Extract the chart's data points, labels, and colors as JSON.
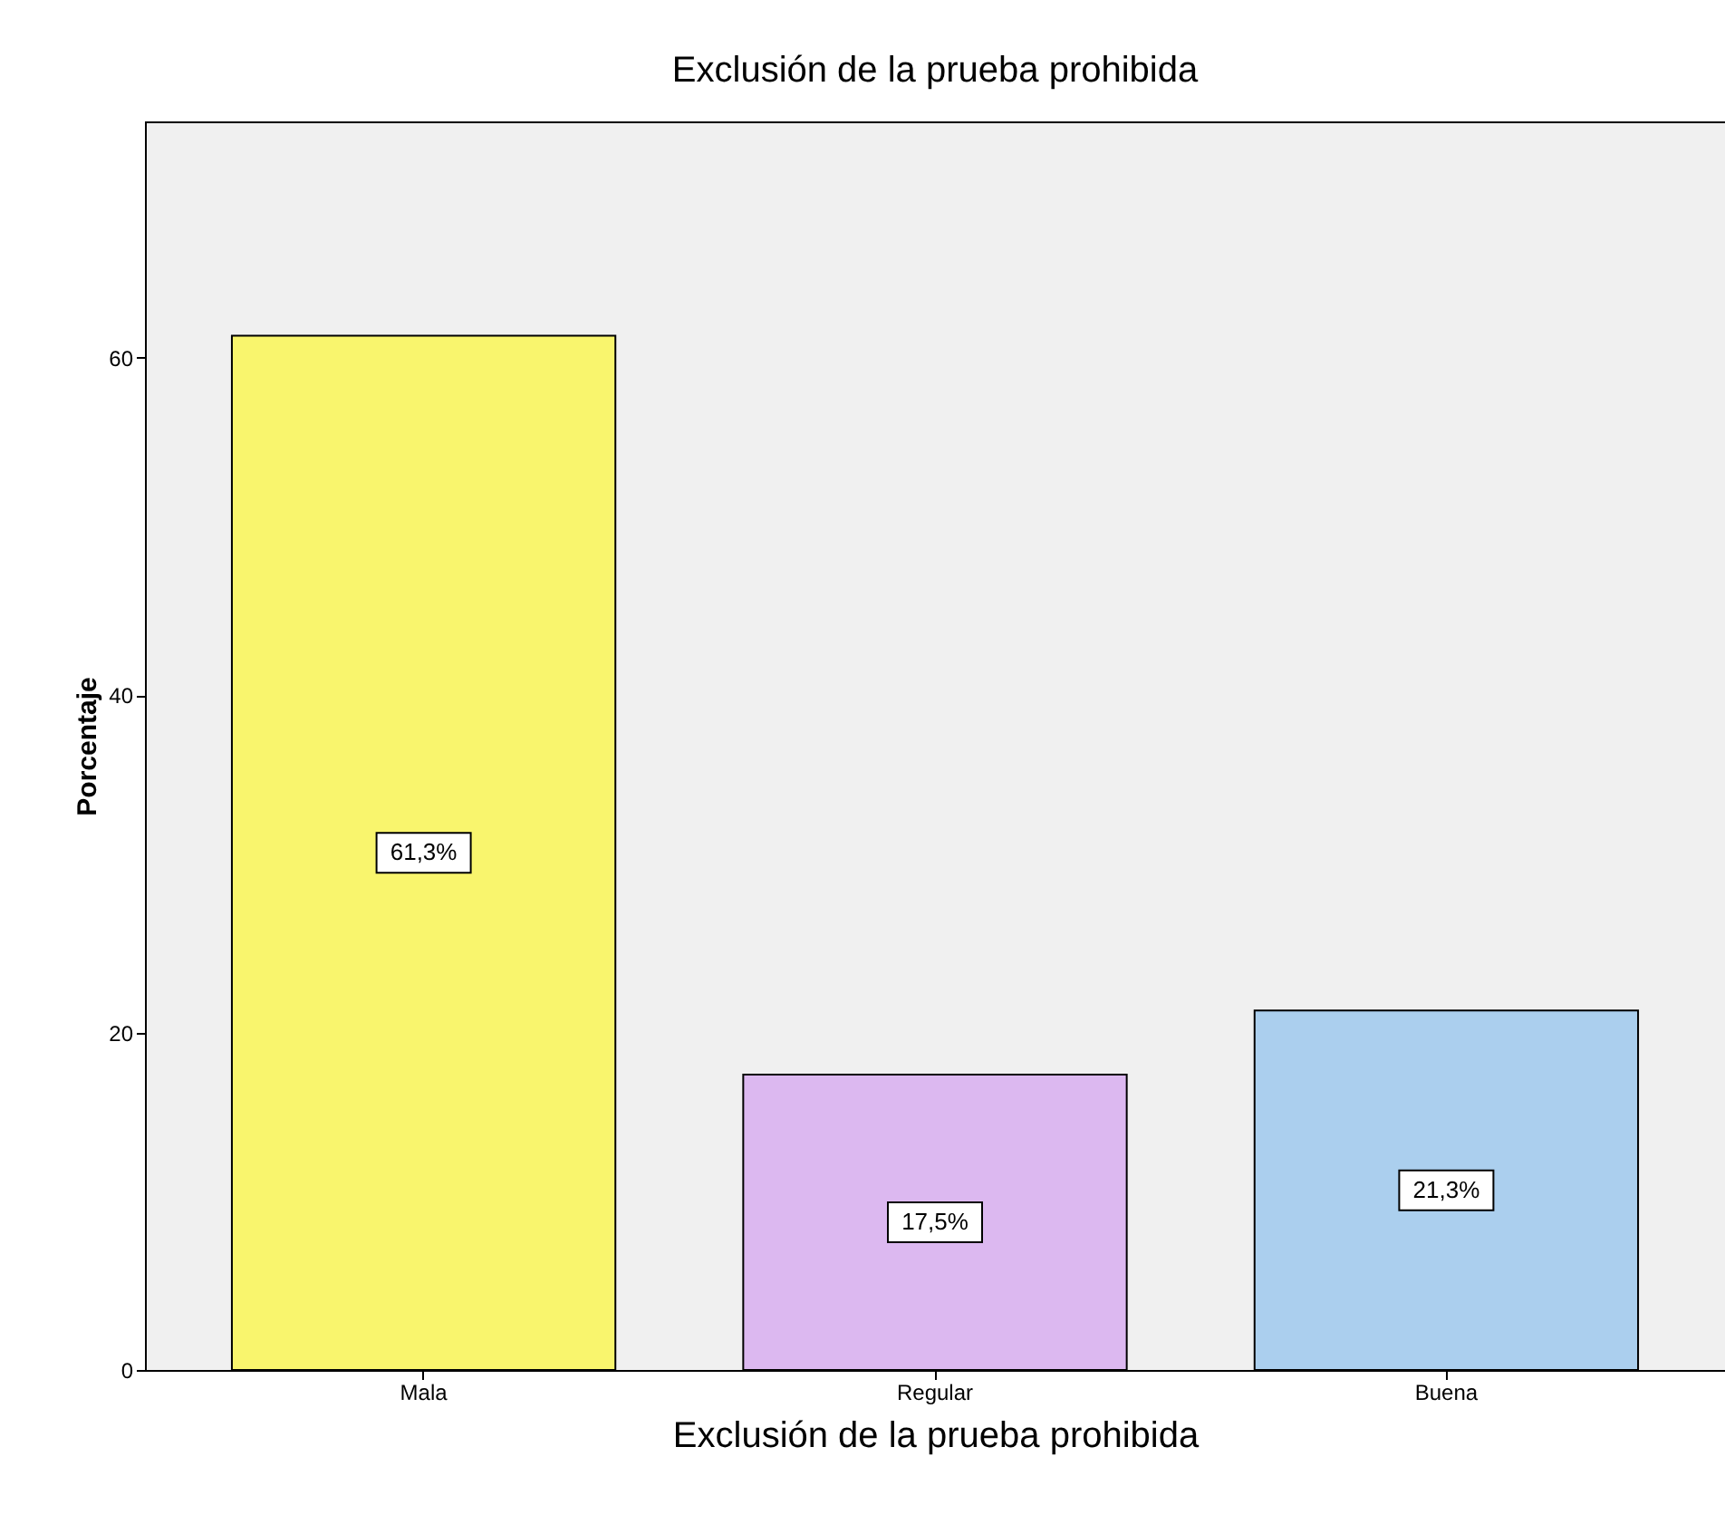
{
  "chart_data": {
    "type": "bar",
    "title": "Exclusión de la prueba prohibida",
    "xlabel": "Exclusión de la prueba prohibida",
    "ylabel": "Porcentaje",
    "categories": [
      "Mala",
      "Regular",
      "Buena"
    ],
    "values": [
      61.3,
      17.5,
      21.3
    ],
    "colors": [
      "#f9f56d",
      "#dcb8f0",
      "#abcfee"
    ],
    "value_labels": [
      "61,3%",
      "17,5%",
      "21,3%"
    ],
    "ylim": [
      0,
      74
    ],
    "yticks": [
      0,
      20,
      40,
      60
    ],
    "grid": false
  }
}
